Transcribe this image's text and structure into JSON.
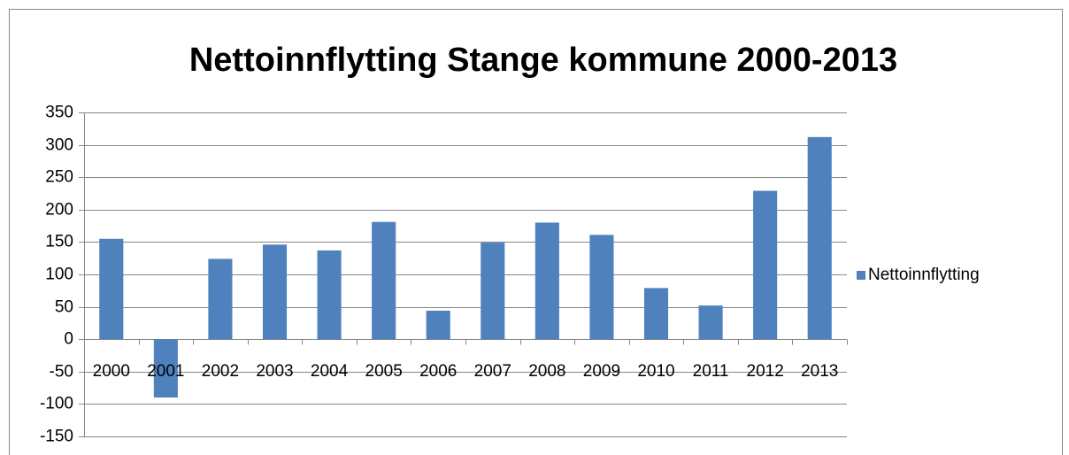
{
  "chart_data": {
    "type": "bar",
    "title": "Nettoinnflytting Stange kommune 2000-2013",
    "categories": [
      "2000",
      "2001",
      "2002",
      "2003",
      "2004",
      "2005",
      "2006",
      "2007",
      "2008",
      "2009",
      "2010",
      "2011",
      "2012",
      "2013"
    ],
    "series": [
      {
        "name": "Nettoinnflytting",
        "color": "#4f81bd",
        "values": [
          155,
          -90,
          124,
          146,
          137,
          181,
          44,
          149,
          180,
          161,
          79,
          52,
          229,
          312
        ]
      }
    ],
    "ylim": [
      -150,
      350
    ],
    "yticks": [
      -150,
      -100,
      -50,
      0,
      50,
      100,
      150,
      200,
      250,
      300,
      350
    ],
    "grid": true,
    "legend": "right"
  }
}
